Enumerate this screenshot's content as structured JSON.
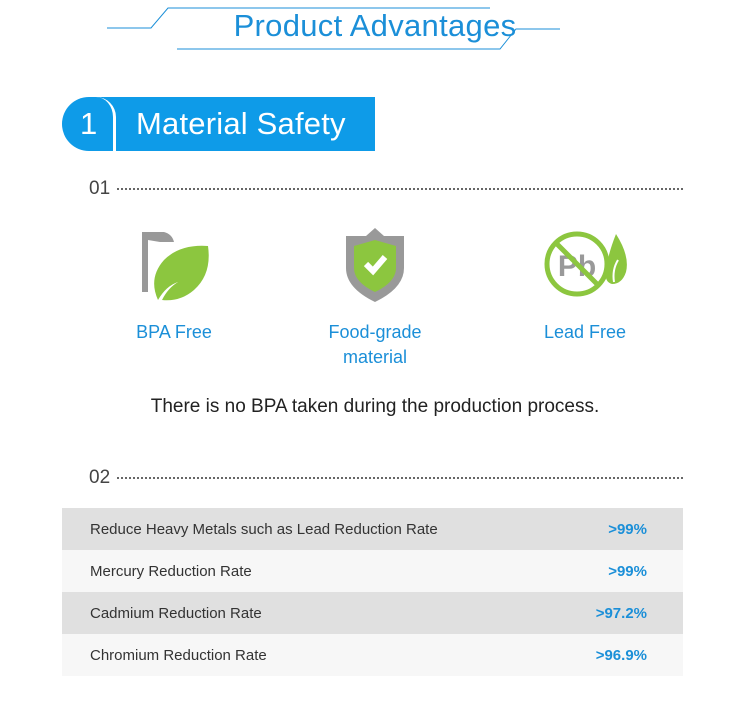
{
  "header": {
    "title": "Product Advantages"
  },
  "section": {
    "number": "1",
    "title": "Material Safety"
  },
  "part1": {
    "label": "01",
    "features": [
      {
        "icon": "leaf-icon",
        "label": "BPA Free"
      },
      {
        "icon": "shield-check-icon",
        "label": "Food-grade material"
      },
      {
        "icon": "no-lead-icon",
        "label": "Lead Free",
        "icon_text": "Pb"
      }
    ],
    "description": "There is no BPA taken during the production process."
  },
  "part2": {
    "label": "02",
    "rows": [
      {
        "name": "Reduce Heavy Metals such as Lead Reduction Rate",
        "value": ">99%"
      },
      {
        "name": "Mercury Reduction Rate",
        "value": ">99%"
      },
      {
        "name": "Cadmium Reduction Rate",
        "value": ">97.2%"
      },
      {
        "name": "Chromium Reduction Rate",
        "value": ">96.9%"
      }
    ]
  },
  "colors": {
    "accent": "#1b8fd8",
    "badge": "#0e9be8",
    "green": "#8cc63f",
    "gray": "#999999"
  }
}
